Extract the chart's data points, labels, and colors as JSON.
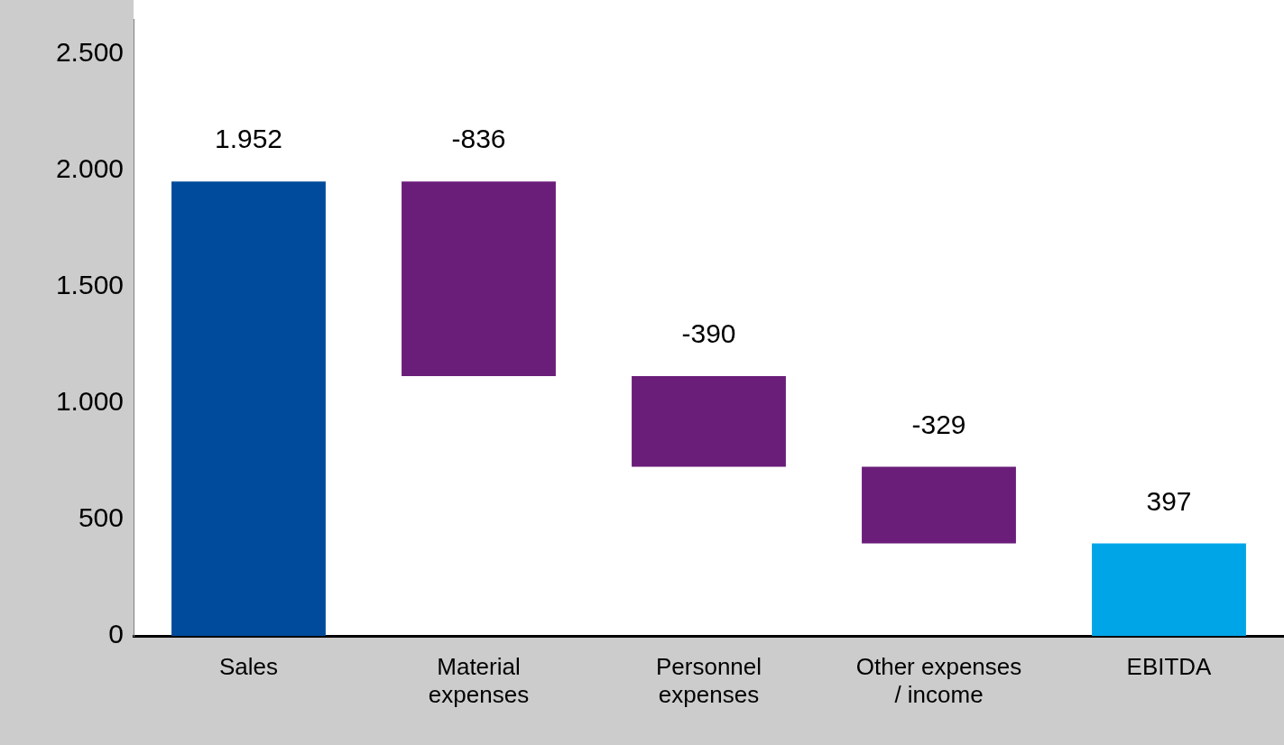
{
  "chart_data": {
    "type": "bar",
    "categories": [
      "Sales",
      "Material expenses",
      "Personnel expenses",
      "Other expenses / income",
      "EBITDA"
    ],
    "values": [
      1952,
      -836,
      -390,
      -329,
      397
    ],
    "base": [
      0,
      1952,
      1116,
      726,
      0
    ],
    "colors": [
      "#004b9b",
      "#6a1d79",
      "#6a1d79",
      "#6a1d79",
      "#00a5e8"
    ],
    "value_labels": [
      "1.952",
      "-836",
      "-390",
      "-329",
      "397"
    ],
    "ylim": [
      0,
      2650
    ],
    "yticks": [
      {
        "value": 0,
        "label": "0"
      },
      {
        "value": 500,
        "label": "500"
      },
      {
        "value": 1000,
        "label": "1.000"
      },
      {
        "value": 1500,
        "label": "1.500"
      },
      {
        "value": 2000,
        "label": "2.000"
      },
      {
        "value": 2500,
        "label": "2.500"
      }
    ],
    "grid": false,
    "legend": false
  }
}
